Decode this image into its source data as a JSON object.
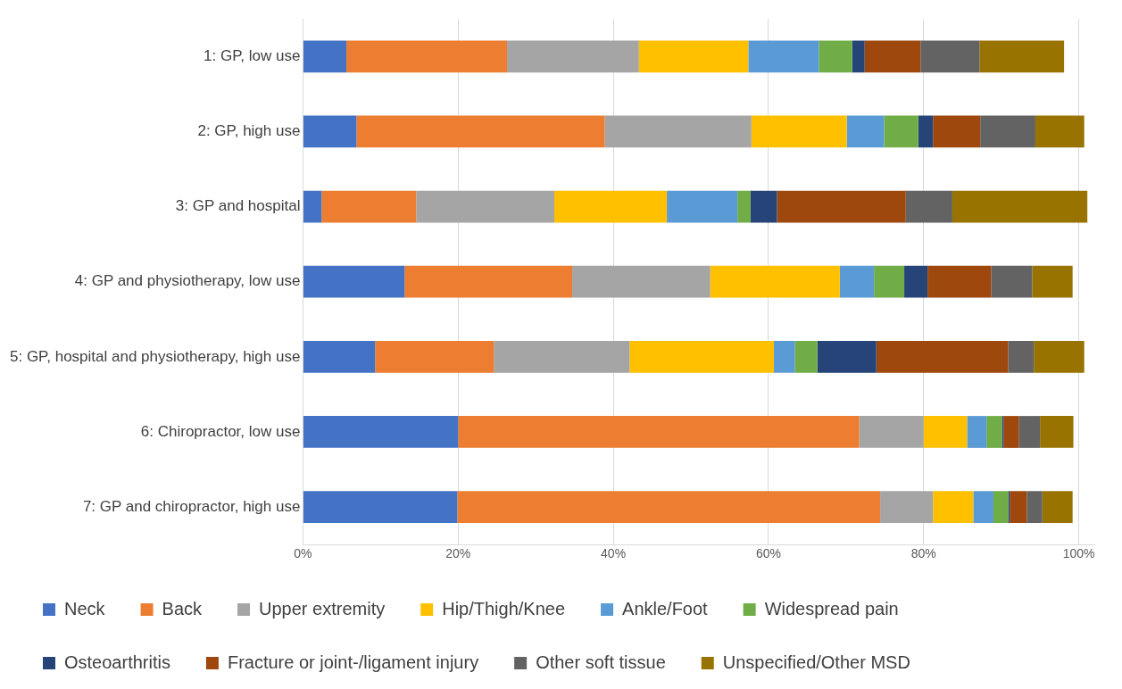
{
  "chart_data": {
    "type": "bar",
    "orientation": "horizontal",
    "stacked": true,
    "grid": "x",
    "legend": "bottom",
    "categories": [
      "1: GP, low use",
      "2: GP, high use",
      "3: GP and hospital",
      "4: GP and physiotherapy, low use",
      "5: GP, hospital and physiotherapy, high use",
      "6: Chiropractor, low use",
      "7: GP and chiropractor, high use"
    ],
    "xlim": [
      0,
      102
    ],
    "xticks": [
      {
        "value": 0,
        "label": "0%"
      },
      {
        "value": 20,
        "label": "20%"
      },
      {
        "value": 40,
        "label": "40%"
      },
      {
        "value": 60,
        "label": "60%"
      },
      {
        "value": 80,
        "label": "80%"
      },
      {
        "value": 100,
        "label": "100%"
      }
    ],
    "series": [
      {
        "name": "Neck",
        "color": "#4472c4",
        "values": [
          5.6,
          6.9,
          2.4,
          13.1,
          9.3,
          20.0,
          19.9
        ]
      },
      {
        "name": "Back",
        "color": "#ed7d31",
        "values": [
          20.7,
          32.0,
          12.2,
          21.6,
          15.3,
          51.7,
          54.5
        ]
      },
      {
        "name": "Upper extremity",
        "color": "#a5a5a5",
        "values": [
          17.0,
          18.9,
          17.8,
          17.8,
          17.5,
          8.3,
          6.8
        ]
      },
      {
        "name": "Hip/Thigh/Knee",
        "color": "#ffc000",
        "values": [
          14.1,
          12.3,
          14.5,
          16.7,
          18.6,
          5.6,
          5.2
        ]
      },
      {
        "name": "Ankle/Foot",
        "color": "#5b9bd5",
        "values": [
          9.1,
          4.8,
          9.1,
          4.4,
          2.7,
          2.5,
          2.6
        ]
      },
      {
        "name": "Widespread pain",
        "color": "#70ad47",
        "values": [
          4.3,
          4.4,
          1.7,
          3.9,
          2.9,
          2.0,
          1.9
        ]
      },
      {
        "name": "Osteoarthritis",
        "color": "#264478",
        "values": [
          1.6,
          1.9,
          3.4,
          3.0,
          7.6,
          0.2,
          0.2
        ]
      },
      {
        "name": "Fracture or joint-/ligament injury",
        "color": "#9e480e",
        "values": [
          7.2,
          6.1,
          16.6,
          8.2,
          17.0,
          2.0,
          2.2
        ]
      },
      {
        "name": "Other soft tissue",
        "color": "#636363",
        "values": [
          7.6,
          7.1,
          6.0,
          5.3,
          3.3,
          2.7,
          2.0
        ]
      },
      {
        "name": "Unspecified/Other MSD",
        "color": "#997300",
        "values": [
          10.9,
          6.3,
          17.4,
          5.2,
          6.5,
          4.3,
          3.9
        ]
      }
    ]
  }
}
